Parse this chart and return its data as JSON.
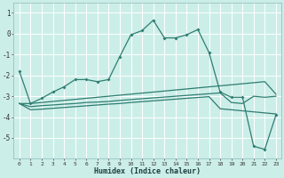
{
  "xlabel": "Humidex (Indice chaleur)",
  "background_color": "#cceee8",
  "grid_color": "#ffffff",
  "line_color": "#2e7d72",
  "x_ticks": [
    0,
    1,
    2,
    3,
    4,
    5,
    6,
    7,
    8,
    9,
    10,
    11,
    12,
    13,
    14,
    15,
    16,
    17,
    18,
    19,
    20,
    21,
    22,
    23
  ],
  "ylim": [
    -6.0,
    1.5
  ],
  "yticks": [
    -5,
    -4,
    -3,
    -2,
    -1,
    0,
    1
  ],
  "line1_y": [
    -1.8,
    -3.35,
    -3.1,
    -2.8,
    -2.55,
    -2.2,
    -2.2,
    -2.3,
    -2.2,
    -1.1,
    -0.05,
    0.15,
    0.65,
    -0.2,
    -0.2,
    -0.05,
    0.2,
    -0.9,
    -2.8,
    -3.05,
    -3.05,
    -5.4,
    -5.55,
    -3.9
  ],
  "line2_y": [
    -3.35,
    -3.35,
    -3.3,
    -3.25,
    -3.2,
    -3.15,
    -3.1,
    -3.05,
    -3.0,
    -2.95,
    -2.9,
    -2.85,
    -2.8,
    -2.75,
    -2.7,
    -2.65,
    -2.6,
    -2.55,
    -2.5,
    -2.45,
    -2.4,
    -2.35,
    -2.3,
    -2.9
  ],
  "line3_y": [
    -3.35,
    -3.5,
    -3.45,
    -3.42,
    -3.38,
    -3.35,
    -3.3,
    -3.28,
    -3.25,
    -3.2,
    -3.16,
    -3.12,
    -3.08,
    -3.04,
    -3.0,
    -2.96,
    -2.92,
    -2.88,
    -2.84,
    -3.3,
    -3.35,
    -3.0,
    -3.05,
    -3.0
  ],
  "line4_y": [
    -3.35,
    -3.65,
    -3.62,
    -3.58,
    -3.54,
    -3.5,
    -3.46,
    -3.42,
    -3.38,
    -3.35,
    -3.3,
    -3.26,
    -3.22,
    -3.18,
    -3.14,
    -3.1,
    -3.06,
    -3.02,
    -3.6,
    -3.65,
    -3.7,
    -3.75,
    -3.8,
    -3.85
  ]
}
